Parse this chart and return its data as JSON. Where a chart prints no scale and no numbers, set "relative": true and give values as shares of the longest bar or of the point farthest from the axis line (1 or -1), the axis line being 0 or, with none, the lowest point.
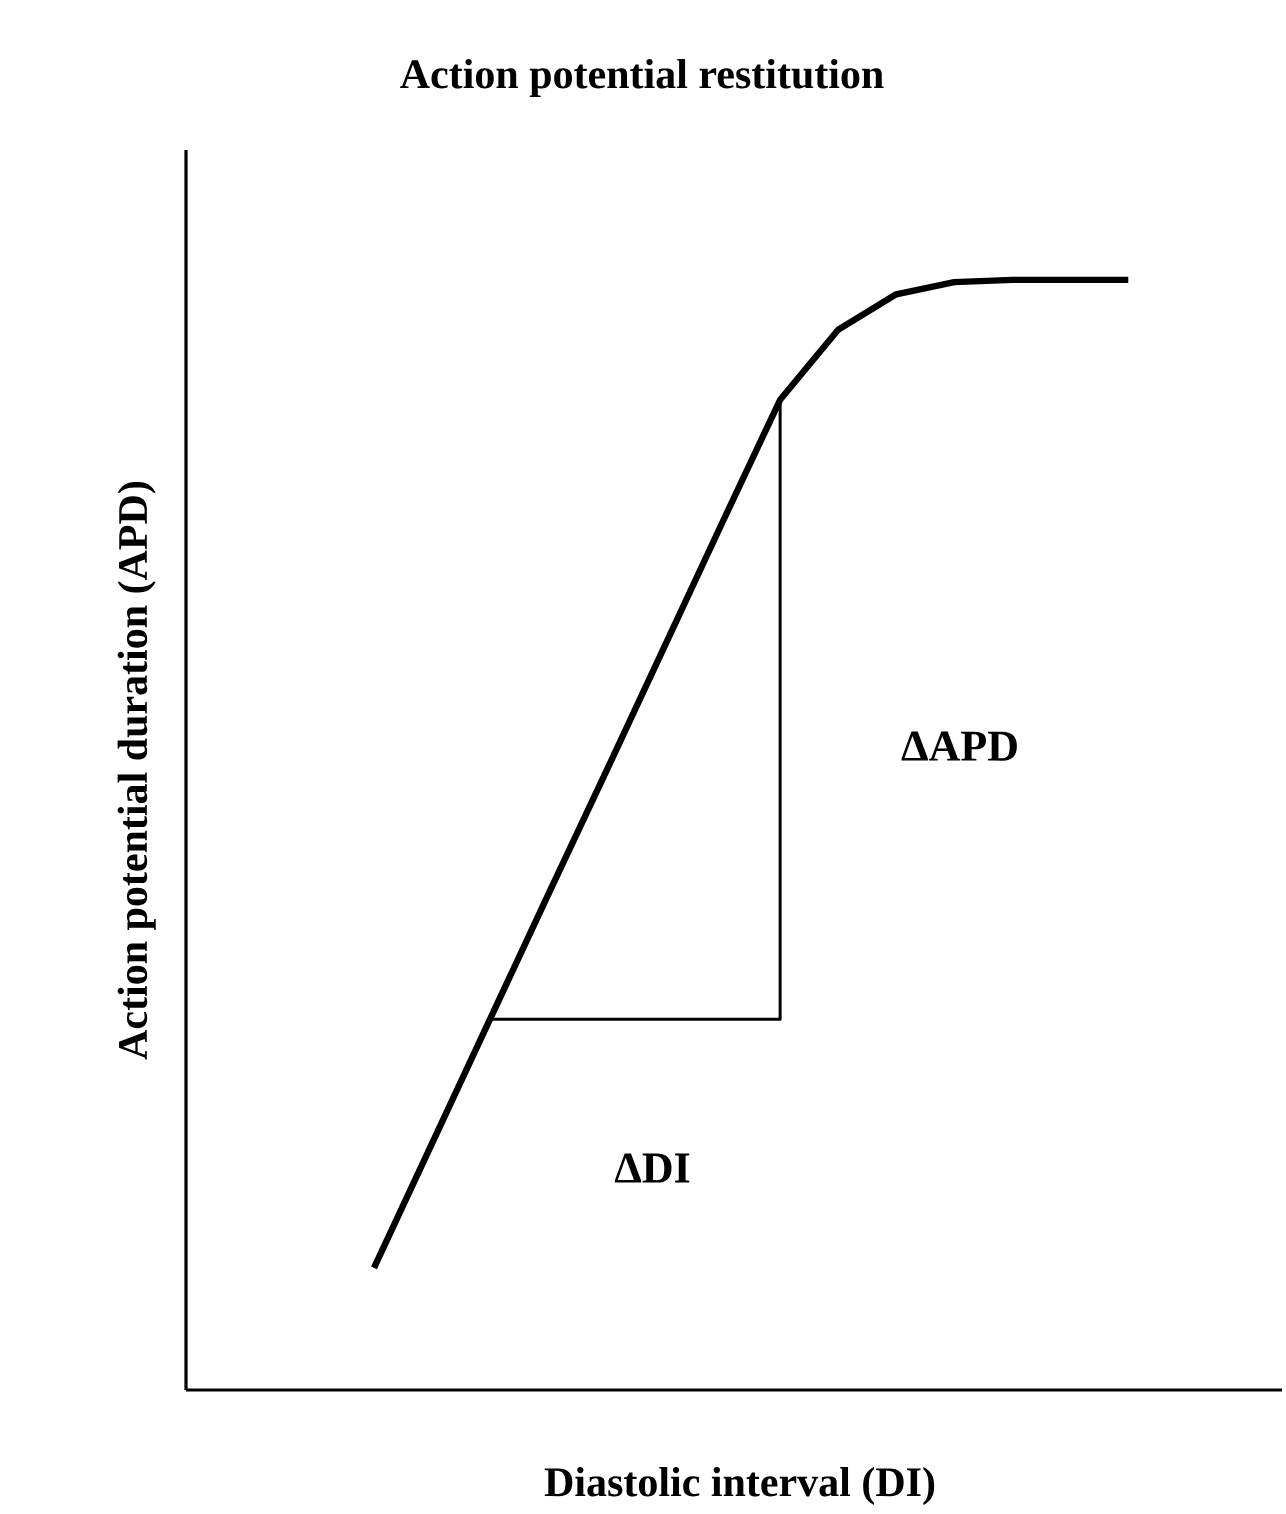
{
  "chart_data": {
    "type": "line",
    "title": "Action potential restitution",
    "xlabel": "Diastolic interval (DI)",
    "ylabel": "Action potential duration (APD)",
    "relative": true,
    "categories": [
      null,
      null,
      null,
      null,
      null,
      null,
      null,
      null,
      null,
      null,
      null,
      null,
      null,
      null
    ],
    "series": [
      {
        "color": "#000000",
        "values": [
          0.11,
          0.222,
          0.334,
          0.446,
          0.557,
          0.669,
          0.781,
          0.892,
          0.955,
          0.987,
          0.998,
          1,
          1,
          1
        ]
      },
      {
        "type": "step",
        "color": "#000000",
        "values": [
          null,
          null,
          0.334,
          0.334,
          0.334,
          0.334,
          0.334,
          0.892,
          null,
          null,
          null,
          null,
          null,
          null
        ]
      }
    ],
    "annotations": [
      "ΔAPD",
      "ΔDI"
    ]
  }
}
